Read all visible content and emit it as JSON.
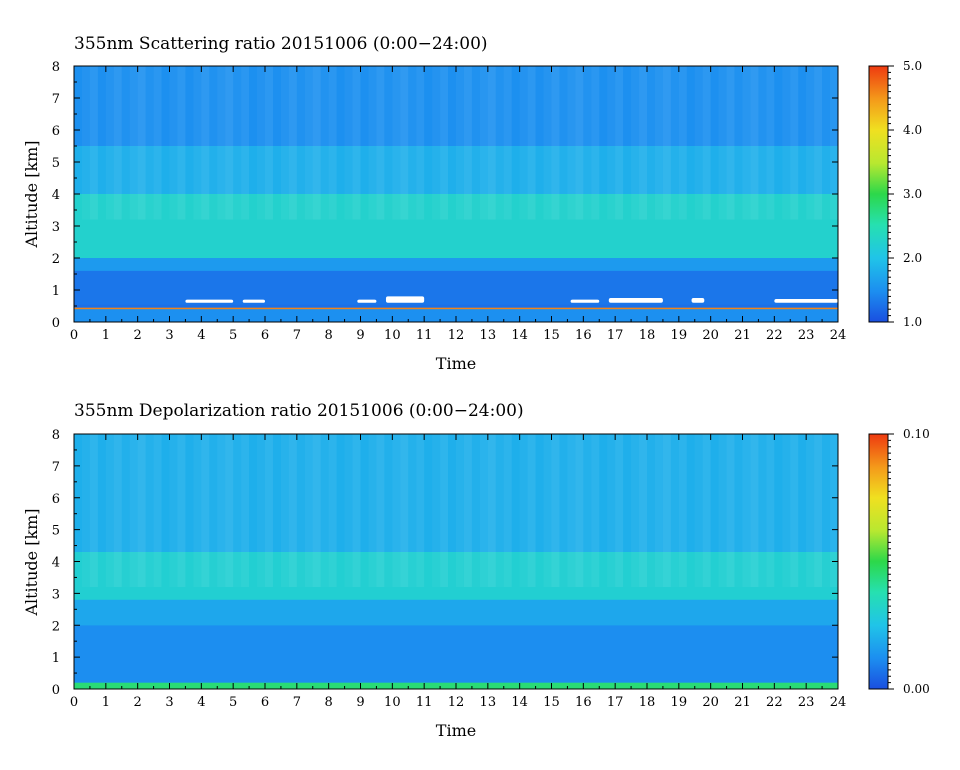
{
  "chart_data": [
    {
      "type": "heatmap",
      "title": "355nm Scattering ratio  20151006 (0:00−24:00)",
      "xlabel": "Time",
      "ylabel": "Altitude [km]",
      "xlim": [
        0,
        24
      ],
      "ylim": [
        0,
        8
      ],
      "x_ticks": [
        "0",
        "1",
        "2",
        "3",
        "4",
        "5",
        "6",
        "7",
        "8",
        "9",
        "10",
        "11",
        "12",
        "13",
        "14",
        "15",
        "16",
        "17",
        "18",
        "19",
        "20",
        "21",
        "22",
        "23",
        "24"
      ],
      "y_ticks": [
        "0",
        "1",
        "2",
        "3",
        "4",
        "5",
        "6",
        "7",
        "8"
      ],
      "colorbar": {
        "min": 1.0,
        "max": 5.0,
        "tick_labels": [
          "1.0",
          "2.0",
          "3.0",
          "4.0",
          "5.0"
        ],
        "tick_values": [
          1.0,
          2.0,
          3.0,
          4.0,
          5.0
        ]
      },
      "layers": [
        {
          "alt_range": [
            0.4,
            0.45
          ],
          "value": 4.6
        },
        {
          "alt_range": [
            0.45,
            0.55
          ],
          "value": 1.25
        },
        {
          "alt_range": [
            0.55,
            1.6
          ],
          "value": 1.3
        },
        {
          "alt_range": [
            1.6,
            2.0
          ],
          "value": 1.6
        },
        {
          "alt_range": [
            2.0,
            4.0
          ],
          "value": 2.25
        },
        {
          "alt_range": [
            4.0,
            5.5
          ],
          "value": 1.8
        },
        {
          "alt_range": [
            5.5,
            8.0
          ],
          "value": 1.5
        }
      ],
      "saturated_patches": [
        {
          "time": [
            3.5,
            5.0
          ],
          "alt": [
            0.6,
            0.7
          ]
        },
        {
          "time": [
            5.3,
            6.0
          ],
          "alt": [
            0.6,
            0.7
          ]
        },
        {
          "time": [
            8.9,
            9.5
          ],
          "alt": [
            0.6,
            0.7
          ]
        },
        {
          "time": [
            9.8,
            11.0
          ],
          "alt": [
            0.6,
            0.8
          ]
        },
        {
          "time": [
            15.6,
            16.5
          ],
          "alt": [
            0.6,
            0.7
          ]
        },
        {
          "time": [
            16.8,
            18.5
          ],
          "alt": [
            0.6,
            0.75
          ]
        },
        {
          "time": [
            19.4,
            19.8
          ],
          "alt": [
            0.6,
            0.75
          ]
        },
        {
          "time": [
            22.0,
            24.0
          ],
          "alt": [
            0.6,
            0.72
          ]
        }
      ]
    },
    {
      "type": "heatmap",
      "title": "355nm Depolarization ratio  20151006 (0:00−24:00)",
      "xlabel": "Time",
      "ylabel": "Altitude [km]",
      "xlim": [
        0,
        24
      ],
      "ylim": [
        0,
        8
      ],
      "x_ticks": [
        "0",
        "1",
        "2",
        "3",
        "4",
        "5",
        "6",
        "7",
        "8",
        "9",
        "10",
        "11",
        "12",
        "13",
        "14",
        "15",
        "16",
        "17",
        "18",
        "19",
        "20",
        "21",
        "22",
        "23",
        "24"
      ],
      "y_ticks": [
        "0",
        "1",
        "2",
        "3",
        "4",
        "5",
        "6",
        "7",
        "8"
      ],
      "colorbar": {
        "min": 0.0,
        "max": 0.1,
        "tick_labels": [
          "0.00",
          "0.10"
        ],
        "tick_values": [
          0.0,
          0.1
        ]
      },
      "layers": [
        {
          "alt_range": [
            0.0,
            0.2
          ],
          "value": 0.045
        },
        {
          "alt_range": [
            0.2,
            2.0
          ],
          "value": 0.012
        },
        {
          "alt_range": [
            2.0,
            2.8
          ],
          "value": 0.018
        },
        {
          "alt_range": [
            2.8,
            4.3
          ],
          "value": 0.03
        },
        {
          "alt_range": [
            4.3,
            8.0
          ],
          "value": 0.02
        }
      ]
    }
  ]
}
